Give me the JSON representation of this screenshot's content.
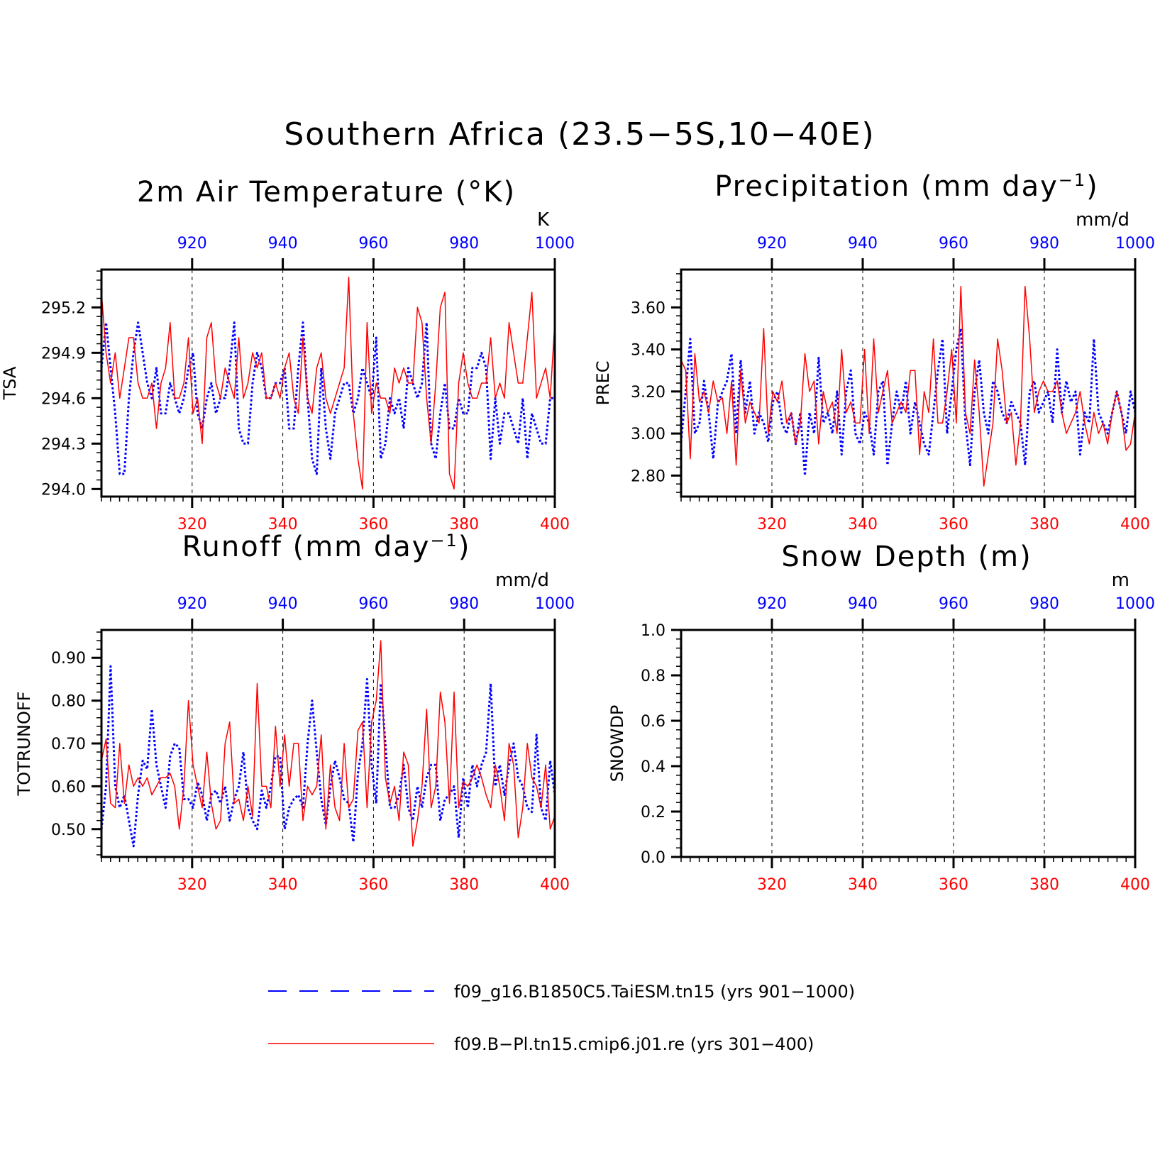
{
  "figure": {
    "title": "Southern Africa (23.5−5S,10−40E)",
    "legend": [
      {
        "label": "f09_g16.B1850C5.TaiESM.tn15 (yrs 901−1000)",
        "color": "#0000ff",
        "style": "dashed"
      },
      {
        "label": "f09.B−Pl.tn15.cmip6.j01.re (yrs 301−400)",
        "color": "#ff0000",
        "style": "solid"
      }
    ]
  },
  "colors": {
    "series_blue": "#0000ff",
    "series_red": "#ff0000",
    "axis": "#000000"
  },
  "chart_data": [
    {
      "type": "line",
      "title_main": "2m Air Temperature (°K)",
      "ylabel": "TSA",
      "units": "K",
      "bottom_ticks": [
        "320",
        "340",
        "360",
        "380",
        "400"
      ],
      "top_ticks": [
        "920",
        "940",
        "960",
        "980",
        "1000"
      ],
      "ylim": [
        293.95,
        295.45
      ],
      "yticks": [
        "294.0",
        "294.3",
        "294.6",
        "294.9",
        "295.2"
      ],
      "series": [
        {
          "name": "f09_g16.B1850C5.TaiESM.tn15",
          "x_range": [
            901,
            1000
          ],
          "values": [
            294.8,
            295.1,
            294.8,
            294.5,
            294.1,
            294.1,
            294.6,
            294.9,
            295.1,
            294.9,
            294.7,
            294.6,
            294.8,
            294.5,
            294.5,
            294.7,
            294.6,
            294.5,
            294.6,
            294.8,
            294.9,
            294.5,
            294.4,
            294.6,
            294.7,
            294.5,
            294.6,
            294.6,
            294.8,
            295.1,
            294.4,
            294.3,
            294.3,
            294.7,
            294.9,
            294.8,
            294.6,
            294.6,
            294.7,
            294.7,
            294.8,
            294.4,
            294.4,
            294.8,
            295.1,
            294.6,
            294.2,
            294.1,
            294.8,
            294.4,
            294.2,
            294.5,
            294.6,
            294.7,
            294.7,
            294.5,
            294.6,
            294.8,
            294.7,
            294.6,
            295.0,
            294.2,
            294.3,
            294.6,
            294.5,
            294.6,
            294.4,
            294.8,
            294.7,
            294.6,
            294.7,
            295.1,
            294.3,
            294.2,
            294.5,
            294.7,
            294.4,
            294.4,
            294.6,
            294.5,
            294.5,
            294.8,
            294.8,
            294.9,
            294.8,
            294.2,
            294.6,
            294.3,
            294.5,
            294.5,
            294.4,
            294.3,
            294.6,
            294.2,
            294.5,
            294.4,
            294.3,
            294.3,
            294.6,
            294.6
          ]
        },
        {
          "name": "f09.B-Pl.tn15.cmip6.j01.re",
          "x_range": [
            301,
            400
          ],
          "values": [
            295.3,
            294.9,
            294.7,
            294.9,
            294.6,
            294.8,
            295.0,
            295.0,
            294.7,
            294.6,
            294.6,
            294.7,
            294.4,
            294.7,
            294.8,
            295.1,
            294.6,
            294.6,
            294.7,
            295.0,
            294.5,
            294.6,
            294.3,
            295.0,
            295.1,
            294.7,
            294.6,
            294.8,
            294.7,
            294.6,
            295.0,
            294.6,
            294.7,
            294.9,
            294.8,
            294.9,
            294.6,
            294.6,
            294.7,
            294.6,
            294.8,
            294.9,
            294.6,
            294.5,
            295.0,
            294.6,
            294.5,
            294.8,
            294.9,
            294.6,
            294.5,
            294.6,
            294.7,
            294.8,
            295.4,
            294.5,
            294.2,
            294.0,
            295.1,
            294.5,
            294.7,
            294.6,
            294.6,
            294.5,
            294.8,
            294.7,
            294.8,
            294.7,
            294.7,
            295.2,
            295.1,
            294.6,
            294.3,
            294.7,
            295.2,
            295.3,
            294.1,
            294.0,
            294.7,
            294.9,
            294.7,
            294.6,
            294.6,
            294.7,
            294.7,
            295.0,
            294.6,
            294.7,
            294.6,
            295.1,
            294.9,
            294.7,
            294.7,
            295.0,
            295.3,
            294.6,
            294.7,
            294.8,
            294.6,
            295.1
          ]
        }
      ]
    },
    {
      "type": "line",
      "title_main": "Precipitation (mm day",
      "title_sup": "−1",
      "title_end": ")",
      "ylabel": "PREC",
      "units": "mm/d",
      "bottom_ticks": [
        "320",
        "340",
        "360",
        "380",
        "400"
      ],
      "top_ticks": [
        "920",
        "940",
        "960",
        "980",
        "1000"
      ],
      "ylim": [
        2.7,
        3.78
      ],
      "yticks": [
        "2.80",
        "3.00",
        "3.20",
        "3.40",
        "3.60"
      ],
      "series": [
        {
          "name": "f09_g16.B1850C5.TaiESM.tn15",
          "x_range": [
            901,
            1000
          ],
          "values": [
            2.96,
            3.2,
            3.45,
            3.0,
            3.05,
            3.25,
            3.1,
            2.88,
            3.14,
            3.2,
            3.25,
            3.38,
            3.0,
            3.35,
            3.1,
            3.25,
            3.0,
            3.1,
            3.05,
            2.96,
            3.15,
            3.2,
            3.05,
            3.0,
            3.1,
            2.95,
            3.1,
            2.8,
            3.1,
            3.0,
            3.36,
            3.05,
            3.1,
            3.0,
            3.2,
            2.9,
            3.2,
            3.3,
            3.0,
            2.95,
            3.1,
            3.05,
            2.9,
            3.2,
            3.25,
            2.85,
            3.05,
            3.2,
            3.1,
            3.25,
            3.0,
            3.15,
            3.05,
            2.95,
            2.9,
            3.1,
            3.3,
            3.45,
            3.0,
            3.2,
            3.4,
            3.5,
            3.05,
            2.85,
            3.2,
            3.35,
            3.1,
            3.0,
            3.25,
            3.2,
            3.1,
            3.05,
            3.15,
            3.1,
            3.05,
            2.85,
            3.2,
            3.25,
            3.1,
            3.15,
            3.2,
            3.05,
            3.4,
            3.1,
            3.25,
            3.15,
            3.2,
            2.9,
            3.1,
            3.05,
            3.45,
            3.1,
            3.05,
            3.0,
            3.1,
            3.2,
            3.1,
            3.0,
            3.2,
            3.1
          ]
        },
        {
          "name": "f09.B-Pl.tn15.cmip6.j01.re",
          "x_range": [
            301,
            400
          ],
          "values": [
            3.35,
            3.3,
            2.88,
            3.38,
            3.15,
            3.2,
            3.1,
            3.25,
            3.15,
            3.17,
            3.0,
            3.25,
            2.85,
            3.3,
            3.05,
            3.15,
            3.1,
            3.05,
            3.5,
            3.0,
            3.2,
            3.15,
            3.25,
            3.05,
            3.1,
            2.95,
            3.05,
            3.38,
            3.2,
            3.25,
            2.95,
            3.2,
            3.1,
            3.15,
            3.0,
            3.4,
            3.1,
            3.15,
            3.05,
            3.05,
            3.4,
            3.0,
            3.45,
            3.1,
            3.2,
            3.3,
            3.05,
            3.1,
            3.15,
            3.1,
            3.3,
            3.3,
            2.9,
            3.2,
            3.1,
            3.45,
            3.05,
            3.05,
            3.2,
            3.4,
            3.05,
            3.7,
            3.1,
            3.0,
            3.35,
            3.1,
            2.75,
            2.9,
            3.05,
            3.45,
            3.3,
            3.05,
            3.1,
            2.85,
            3.05,
            3.7,
            3.45,
            3.1,
            3.2,
            3.25,
            3.2,
            3.2,
            3.25,
            3.1,
            3.0,
            3.05,
            3.1,
            3.2,
            3.05,
            2.95,
            3.1,
            3.0,
            3.05,
            2.95,
            3.1,
            3.2,
            3.1,
            2.92,
            2.95,
            3.1
          ]
        }
      ]
    },
    {
      "type": "line",
      "title_main": "Runoff (mm day",
      "title_sup": "−1",
      "title_end": ")",
      "ylabel": "TOTRUNOFF",
      "units": "mm/d",
      "bottom_ticks": [
        "320",
        "340",
        "360",
        "380",
        "400"
      ],
      "top_ticks": [
        "920",
        "940",
        "960",
        "980",
        "1000"
      ],
      "ylim": [
        0.435,
        0.965
      ],
      "yticks": [
        "0.50",
        "0.60",
        "0.70",
        "0.80",
        "0.90"
      ],
      "series": [
        {
          "name": "f09_g16.B1850C5.TaiESM.tn15",
          "x_range": [
            901,
            1000
          ],
          "values": [
            0.5,
            0.6,
            0.88,
            0.6,
            0.55,
            0.58,
            0.52,
            0.46,
            0.58,
            0.66,
            0.64,
            0.78,
            0.65,
            0.6,
            0.55,
            0.67,
            0.7,
            0.69,
            0.57,
            0.57,
            0.55,
            0.61,
            0.58,
            0.52,
            0.58,
            0.59,
            0.56,
            0.6,
            0.52,
            0.57,
            0.6,
            0.68,
            0.55,
            0.52,
            0.5,
            0.59,
            0.55,
            0.6,
            0.67,
            0.67,
            0.5,
            0.55,
            0.57,
            0.58,
            0.55,
            0.7,
            0.8,
            0.68,
            0.57,
            0.51,
            0.6,
            0.66,
            0.62,
            0.57,
            0.56,
            0.47,
            0.63,
            0.7,
            0.85,
            0.65,
            0.56,
            0.84,
            0.7,
            0.55,
            0.55,
            0.58,
            0.65,
            0.55,
            0.52,
            0.6,
            0.55,
            0.62,
            0.65,
            0.65,
            0.52,
            0.57,
            0.58,
            0.6,
            0.48,
            0.62,
            0.55,
            0.65,
            0.6,
            0.65,
            0.68,
            0.84,
            0.6,
            0.65,
            0.58,
            0.65,
            0.7,
            0.62,
            0.6,
            0.55,
            0.54,
            0.72,
            0.55,
            0.52,
            0.66,
            0.58
          ]
        },
        {
          "name": "f09.B-Pl.tn15.cmip6.j01.re",
          "x_range": [
            301,
            400
          ],
          "values": [
            0.66,
            0.71,
            0.56,
            0.55,
            0.7,
            0.56,
            0.65,
            0.6,
            0.62,
            0.6,
            0.62,
            0.58,
            0.6,
            0.62,
            0.62,
            0.63,
            0.6,
            0.5,
            0.6,
            0.8,
            0.65,
            0.6,
            0.55,
            0.68,
            0.56,
            0.5,
            0.52,
            0.7,
            0.75,
            0.56,
            0.57,
            0.52,
            0.6,
            0.53,
            0.84,
            0.6,
            0.6,
            0.55,
            0.74,
            0.6,
            0.72,
            0.6,
            0.7,
            0.7,
            0.52,
            0.6,
            0.58,
            0.6,
            0.72,
            0.5,
            0.65,
            0.55,
            0.52,
            0.7,
            0.55,
            0.57,
            0.73,
            0.75,
            0.55,
            0.75,
            0.8,
            0.94,
            0.62,
            0.56,
            0.6,
            0.52,
            0.68,
            0.65,
            0.46,
            0.52,
            0.6,
            0.78,
            0.55,
            0.6,
            0.82,
            0.75,
            0.56,
            0.82,
            0.55,
            0.61,
            0.6,
            0.62,
            0.65,
            0.62,
            0.58,
            0.55,
            0.65,
            0.6,
            0.52,
            0.7,
            0.65,
            0.48,
            0.55,
            0.7,
            0.62,
            0.6,
            0.55,
            0.65,
            0.5,
            0.53
          ]
        }
      ]
    },
    {
      "type": "line",
      "title_main": "Snow Depth (m)",
      "ylabel": "SNOWDP",
      "units": "m",
      "bottom_ticks": [
        "320",
        "340",
        "360",
        "380",
        "400"
      ],
      "top_ticks": [
        "920",
        "940",
        "960",
        "980",
        "1000"
      ],
      "ylim": [
        0.0,
        1.0
      ],
      "yticks": [
        "0.0",
        "0.2",
        "0.4",
        "0.6",
        "0.8",
        "1.0"
      ],
      "series": []
    }
  ]
}
